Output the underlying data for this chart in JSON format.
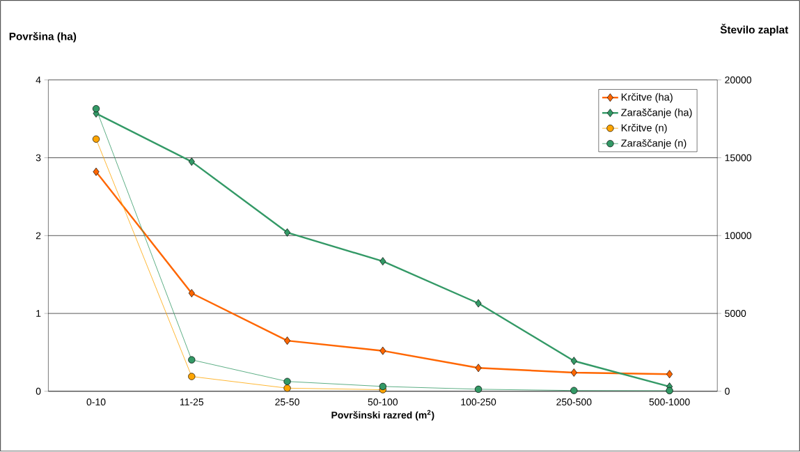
{
  "chart_data": {
    "type": "line",
    "xlabel": "**Površinski razred (m$^{2}$)**",
    "ylabel": "Površina (ha)",
    "y2label": "Število zaplat",
    "categories": [
      "0-10",
      "11-25",
      "25-50",
      "50-100",
      "100-250",
      "250-500",
      "500-1000"
    ],
    "series": [
      {
        "name": "Krčitve (ha)",
        "color": "#ff6600",
        "marker": "diamond",
        "values": [
          2.82,
          1.26,
          0.65,
          0.52,
          0.3,
          0.24,
          0.22
        ]
      },
      {
        "name": "Zaraščanje (ha)",
        "color": "#339966",
        "marker": "diamond",
        "values": [
          3.57,
          2.95,
          2.04,
          1.67,
          1.13,
          0.39,
          0.06
        ]
      },
      {
        "name": "Krčitve (n)",
        "color": "#ffa500",
        "marker": "circle",
        "axis": "y2",
        "values": [
          16200,
          950,
          200,
          100,
          null,
          null,
          null
        ]
      },
      {
        "name": "Zaraščanje (n)",
        "color": "#339966",
        "marker": "circle",
        "axis": "y2",
        "values": [
          18150,
          2020,
          630,
          310,
          130,
          50,
          40
        ]
      }
    ],
    "ylim": [
      0,
      4
    ],
    "yticks": [
      0,
      1,
      2,
      3,
      4
    ],
    "y2lim": [
      0,
      20000
    ],
    "y2ticks": [
      0,
      5000,
      10000,
      15000,
      20000
    ],
    "grid": "y",
    "legend": "top right"
  }
}
